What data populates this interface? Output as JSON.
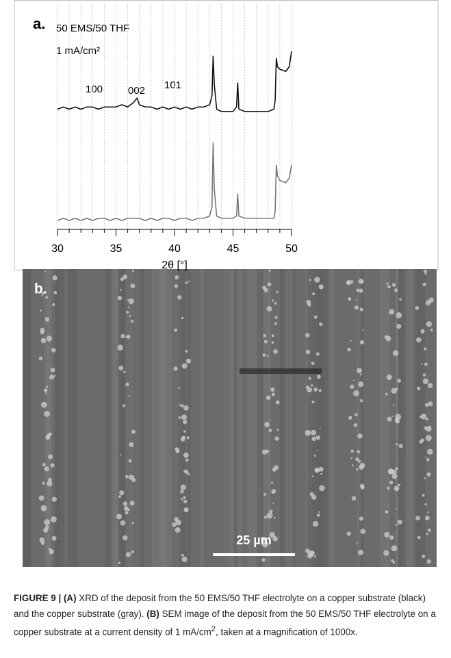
{
  "chart_data": {
    "type": "line",
    "panel_label": "a.",
    "annotations": [
      "50 EMS/50 THF",
      "1 mA/cm²",
      "100",
      "002",
      "101"
    ],
    "x_label": "2θ [°]",
    "xlim": [
      30,
      50
    ],
    "xticks": [
      30,
      35,
      40,
      45,
      50
    ],
    "minor_xticks": [
      30,
      31,
      32,
      33,
      34,
      35,
      36,
      37,
      38,
      39,
      40,
      41,
      42,
      43,
      44,
      45,
      46,
      47,
      48,
      49,
      50
    ],
    "grid": true,
    "ylim": [
      0,
      100
    ],
    "x": [
      30,
      30.5,
      31,
      31.5,
      32,
      32.5,
      33,
      33.5,
      34,
      34.5,
      35,
      35.5,
      36,
      36.5,
      36.8,
      37,
      37.5,
      38,
      38.5,
      39,
      39.5,
      40,
      40.5,
      41,
      41.5,
      42,
      42.5,
      43,
      43.2,
      43.3,
      43.4,
      43.6,
      44,
      44.5,
      45,
      45.3,
      45.4,
      45.5,
      46,
      46.5,
      47,
      47.5,
      48,
      48.5,
      48.6,
      48.7,
      48.8,
      49,
      49.5,
      49.8,
      50
    ],
    "series": [
      {
        "color": "#111111",
        "values": [
          54,
          55,
          54,
          55,
          54,
          55,
          55,
          54,
          55,
          55,
          55,
          56,
          55,
          57,
          59,
          56,
          55,
          55,
          54,
          55,
          54,
          55,
          54,
          55,
          54,
          55,
          55,
          56,
          60,
          78,
          65,
          54,
          53,
          53,
          53,
          55,
          66,
          54,
          53,
          53,
          53,
          53,
          53,
          54,
          58,
          77,
          73,
          72,
          71,
          73,
          80
        ]
      },
      {
        "color": "#777777",
        "values": [
          4,
          5,
          4,
          5,
          4,
          5,
          4,
          5,
          5,
          4,
          5,
          4,
          5,
          5,
          5,
          5,
          4,
          5,
          4,
          5,
          5,
          4,
          5,
          5,
          4,
          5,
          5,
          6,
          10,
          39,
          18,
          6,
          5,
          5,
          5,
          6,
          16,
          6,
          5,
          5,
          5,
          5,
          5,
          5,
          8,
          29,
          24,
          22,
          21,
          23,
          29
        ]
      }
    ]
  },
  "image": {
    "panel_label": "b.",
    "scale_bar": "25 µm"
  },
  "caption": {
    "figure": "FIGURE 9 |",
    "a_label": "(A)",
    "a_text": "XRD of the deposit from the 50 EMS/50 THF electrolyte on a copper substrate (black) and the copper substrate (gray).",
    "b_label": "(B)",
    "b_text": "SEM image of the deposit from the 50 EMS/50 THF electrolyte on a copper substrate at a current density of 1 mA/cm",
    "b_sup": "2",
    "b_end": ", taken at a magnification of 1000x."
  }
}
